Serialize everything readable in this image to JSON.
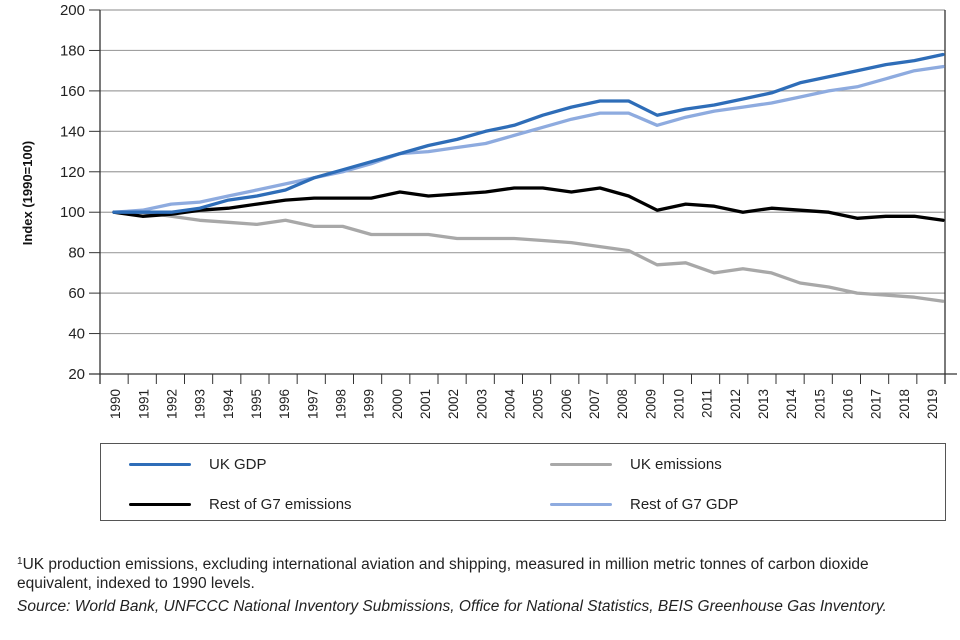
{
  "chart_data": {
    "type": "line",
    "title": "",
    "xlabel": "",
    "ylabel": "Index (1990=100)",
    "ylim": [
      20,
      200
    ],
    "yticks": [
      20,
      40,
      60,
      80,
      100,
      120,
      140,
      160,
      180,
      200
    ],
    "grid": true,
    "legend_position": "bottom",
    "x": [
      1990,
      1991,
      1992,
      1993,
      1994,
      1995,
      1996,
      1997,
      1998,
      1999,
      2000,
      2001,
      2002,
      2003,
      2004,
      2005,
      2006,
      2007,
      2008,
      2009,
      2010,
      2011,
      2012,
      2013,
      2014,
      2015,
      2016,
      2017,
      2018,
      2019
    ],
    "series": [
      {
        "name": "UK GDP",
        "color": "#2e6db8",
        "values": [
          100,
          100,
          100,
          102,
          106,
          108,
          111,
          117,
          121,
          125,
          129,
          133,
          136,
          140,
          143,
          148,
          152,
          155,
          155,
          148,
          151,
          153,
          156,
          159,
          164,
          167,
          170,
          173,
          175,
          178
        ]
      },
      {
        "name": "UK emissions",
        "color": "#a8a8a8",
        "values": [
          100,
          100,
          98,
          96,
          95,
          94,
          96,
          93,
          93,
          89,
          89,
          89,
          87,
          87,
          87,
          86,
          85,
          83,
          81,
          74,
          75,
          70,
          72,
          70,
          65,
          63,
          60,
          59,
          58,
          56
        ]
      },
      {
        "name": "Rest of G7 emissions",
        "color": "#000000",
        "values": [
          100,
          98,
          99,
          101,
          102,
          104,
          106,
          107,
          107,
          107,
          110,
          108,
          109,
          110,
          112,
          112,
          110,
          112,
          108,
          101,
          104,
          103,
          100,
          102,
          101,
          100,
          97,
          98,
          98,
          96
        ]
      },
      {
        "name": "Rest of G7 GDP",
        "color": "#8eabdf",
        "values": [
          100,
          101,
          104,
          105,
          108,
          111,
          114,
          117,
          120,
          124,
          129,
          130,
          132,
          134,
          138,
          142,
          146,
          149,
          149,
          143,
          147,
          150,
          152,
          154,
          157,
          160,
          162,
          166,
          170,
          172
        ]
      }
    ]
  },
  "legend": [
    {
      "label": "UK GDP",
      "color": "#2e6db8"
    },
    {
      "label": "UK emissions",
      "color": "#a8a8a8"
    },
    {
      "label": "Rest of G7 emissions",
      "color": "#000000"
    },
    {
      "label": "Rest of G7 GDP",
      "color": "#8eabdf"
    }
  ],
  "notes": {
    "footnote_marker": "1",
    "footnote": "UK production emissions, excluding international aviation and shipping, measured in million metric tonnes of carbon dioxide equivalent, indexed to 1990 levels.",
    "source": "Source: World Bank, UNFCCC National Inventory Submissions, Office for National Statistics, BEIS Greenhouse Gas Inventory."
  }
}
